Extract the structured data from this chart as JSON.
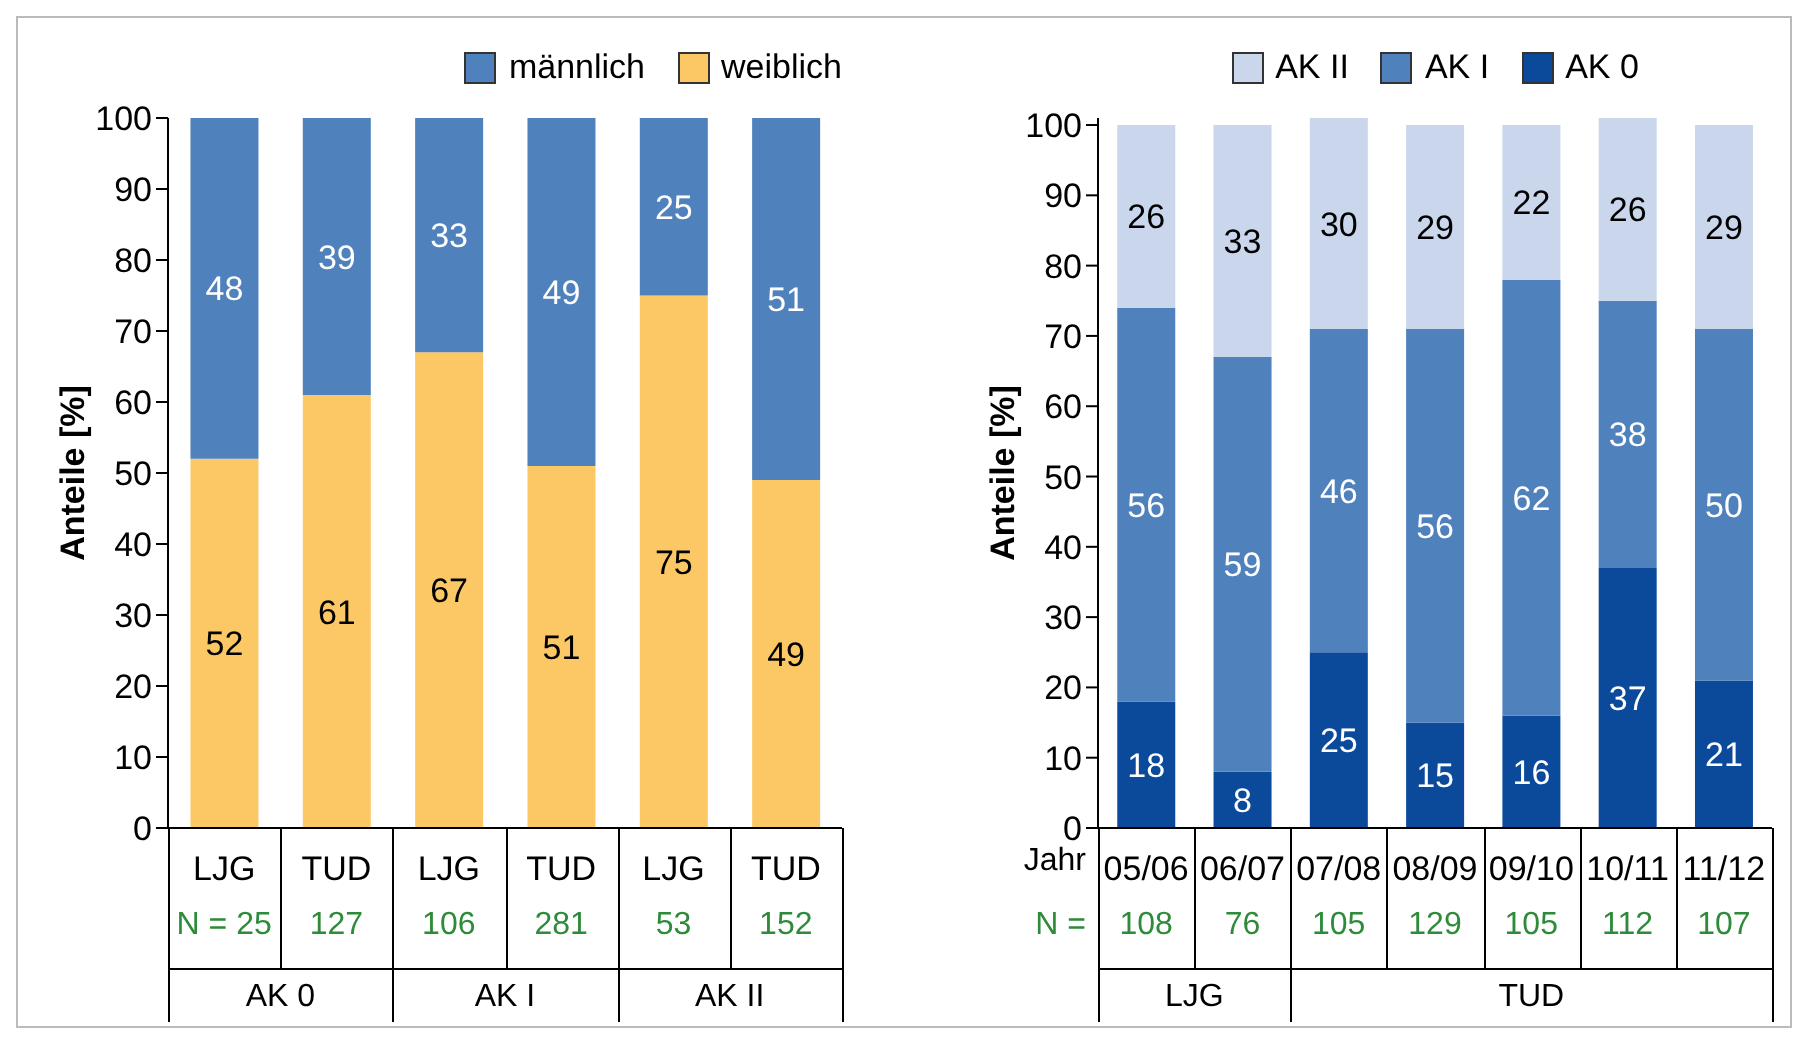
{
  "chart_data": [
    {
      "type": "bar",
      "stacked": true,
      "ylabel": "Anteile [%]",
      "categories": [
        "LJG",
        "TUD",
        "LJG",
        "TUD",
        "LJG",
        "TUD"
      ],
      "ylim": [
        0,
        100
      ],
      "yticks": [
        0,
        10,
        20,
        30,
        40,
        50,
        60,
        70,
        80,
        90,
        100
      ],
      "legend": "top right",
      "data_labels": true,
      "series": [
        {
          "name": "weiblich",
          "color": "#fcc865",
          "values": [
            52,
            61,
            67,
            51,
            75,
            49
          ]
        },
        {
          "name": "männlich",
          "color": "#4f81bd",
          "values": [
            48,
            39,
            33,
            49,
            25,
            51
          ]
        }
      ],
      "annotations": [
        "N = 25",
        "127",
        "106",
        "281",
        "53",
        "152",
        "AK 0",
        "AK I",
        "AK II"
      ]
    },
    {
      "type": "bar",
      "stacked": true,
      "ylabel": "Anteile [%]",
      "xlabel": "Jahr",
      "categories": [
        "05/06",
        "06/07",
        "07/08",
        "08/09",
        "09/10",
        "10/11",
        "11/12"
      ],
      "ylim": [
        0,
        101
      ],
      "yticks": [
        0,
        10,
        20,
        30,
        40,
        50,
        60,
        70,
        80,
        90,
        100
      ],
      "legend": "top",
      "data_labels": true,
      "series": [
        {
          "name": "AK 0",
          "color": "#0b4a9b",
          "values": [
            18,
            8,
            25,
            15,
            16,
            37,
            21
          ]
        },
        {
          "name": "AK I",
          "color": "#4f81bd",
          "values": [
            56,
            59,
            46,
            56,
            62,
            38,
            50
          ]
        },
        {
          "name": "AK II",
          "color": "#c9d6ec",
          "values": [
            26,
            33,
            30,
            29,
            22,
            26,
            29
          ]
        }
      ],
      "annotations": [
        "N =",
        "108",
        "76",
        "105",
        "129",
        "105",
        "112",
        "107",
        "LJG",
        "TUD"
      ]
    }
  ]
}
